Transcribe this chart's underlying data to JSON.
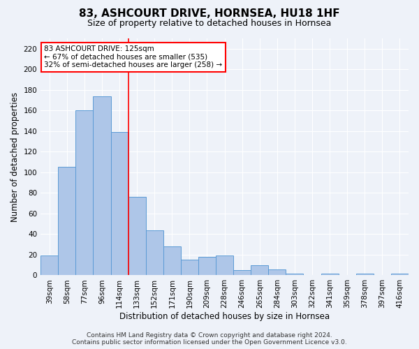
{
  "title": "83, ASHCOURT DRIVE, HORNSEA, HU18 1HF",
  "subtitle": "Size of property relative to detached houses in Hornsea",
  "xlabel": "Distribution of detached houses by size in Hornsea",
  "ylabel": "Number of detached properties",
  "categories": [
    "39sqm",
    "58sqm",
    "77sqm",
    "96sqm",
    "114sqm",
    "133sqm",
    "152sqm",
    "171sqm",
    "190sqm",
    "209sqm",
    "228sqm",
    "246sqm",
    "265sqm",
    "284sqm",
    "303sqm",
    "322sqm",
    "341sqm",
    "359sqm",
    "378sqm",
    "397sqm",
    "416sqm"
  ],
  "values": [
    19,
    105,
    160,
    174,
    139,
    76,
    44,
    28,
    15,
    18,
    19,
    5,
    10,
    6,
    2,
    0,
    2,
    0,
    2,
    0,
    2
  ],
  "bar_color": "#aec6e8",
  "bar_edge_color": "#5b9bd5",
  "vline_x": 4.5,
  "vline_color": "red",
  "ylim": [
    0,
    230
  ],
  "yticks": [
    0,
    20,
    40,
    60,
    80,
    100,
    120,
    140,
    160,
    180,
    200,
    220
  ],
  "annotation_text": "83 ASHCOURT DRIVE: 125sqm\n← 67% of detached houses are smaller (535)\n32% of semi-detached houses are larger (258) →",
  "annotation_box_color": "white",
  "annotation_box_edge_color": "red",
  "footer_line1": "Contains HM Land Registry data © Crown copyright and database right 2024.",
  "footer_line2": "Contains public sector information licensed under the Open Government Licence v3.0.",
  "bg_color": "#eef2f9",
  "grid_color": "white",
  "title_fontsize": 11,
  "subtitle_fontsize": 9,
  "axis_label_fontsize": 8.5,
  "tick_fontsize": 7.5,
  "annotation_fontsize": 7.5,
  "footer_fontsize": 6.5
}
